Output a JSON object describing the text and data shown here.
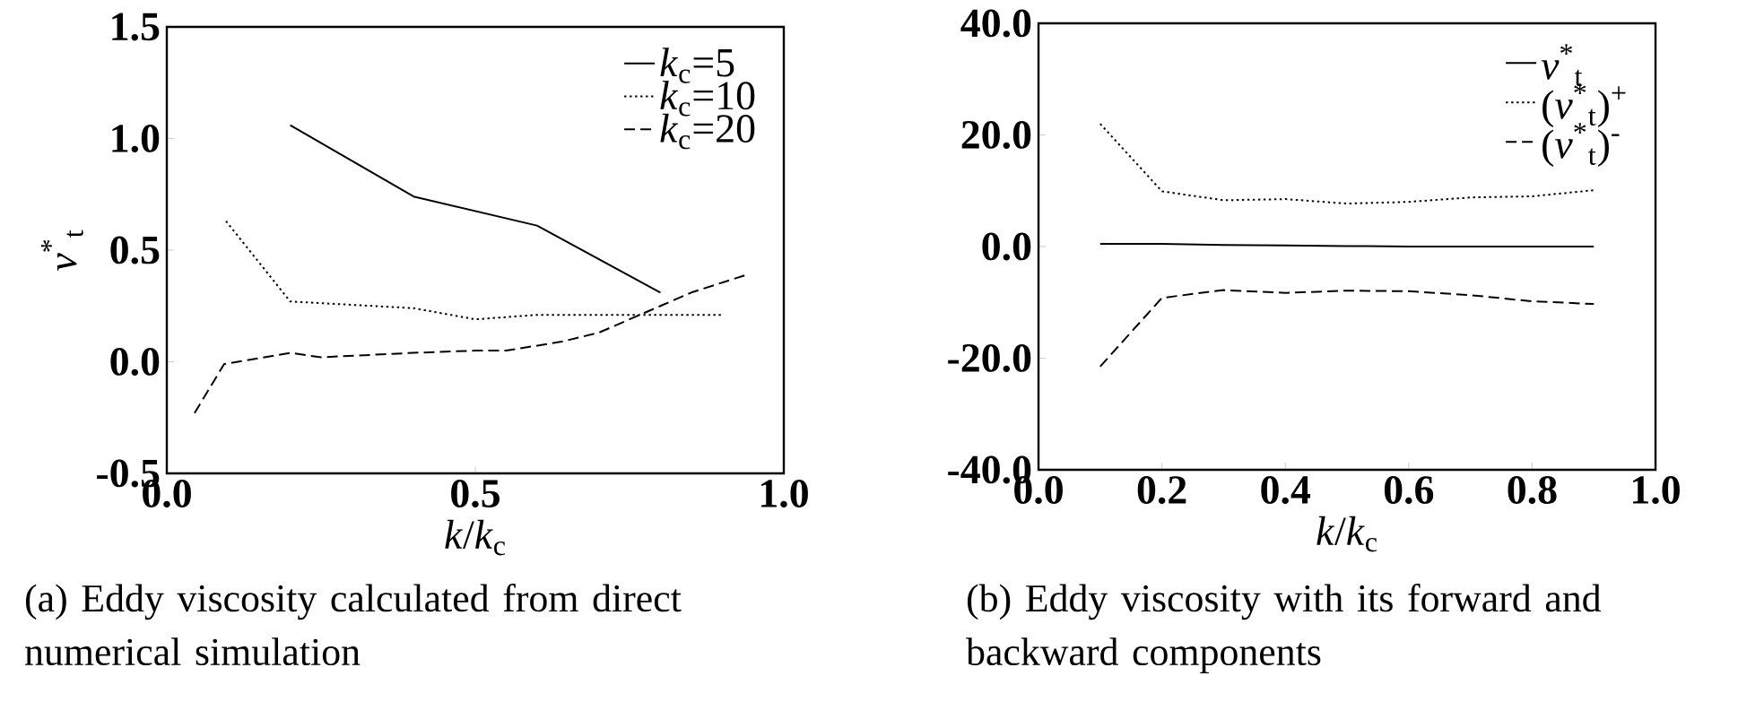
{
  "chart_data": [
    {
      "type": "line",
      "xlabel": "*k*/*k*$_{c}$",
      "ylabel": "*ν*$^{*}$$_{t}$",
      "xlim": [
        0,
        1
      ],
      "ylim": [
        -0.5,
        1.5
      ],
      "xticks": [
        {
          "value": 0,
          "label": "0.0"
        },
        {
          "value": 0.5,
          "label": "0.5"
        },
        {
          "value": 1,
          "label": "1.0"
        }
      ],
      "yticks": [
        {
          "value": -0.5,
          "label": "-0.5"
        },
        {
          "value": 0,
          "label": "0.0"
        },
        {
          "value": 0.5,
          "label": "0.5"
        },
        {
          "value": 1,
          "label": "1.0"
        },
        {
          "value": 1.5,
          "label": "1.5"
        }
      ],
      "grid": false,
      "legend": "top right",
      "series": [
        {
          "name": "*k*$_{c}$=5",
          "color": "#000000",
          "line_style": "solid",
          "x": [
            0.2,
            0.4,
            0.6,
            0.8
          ],
          "values": [
            1.06,
            0.74,
            0.61,
            0.31
          ]
        },
        {
          "name": "*k*$_{c}$=10",
          "color": "#000000",
          "line_style": "dotted",
          "x": [
            0.096,
            0.2,
            0.4,
            0.5,
            0.6,
            0.9
          ],
          "values": [
            0.63,
            0.27,
            0.24,
            0.19,
            0.21,
            0.21
          ]
        },
        {
          "name": "*k*$_{c}$=20",
          "color": "#000000",
          "line_style": "dashed",
          "x": [
            0.045,
            0.093,
            0.2,
            0.25,
            0.4,
            0.5,
            0.55,
            0.64,
            0.7,
            0.8,
            0.85,
            0.94
          ],
          "values": [
            -0.23,
            -0.01,
            0.04,
            0.02,
            0.04,
            0.05,
            0.05,
            0.09,
            0.13,
            0.25,
            0.31,
            0.39
          ]
        }
      ],
      "annotations": [
        "(a) Eddy viscosity calculated from direct numerical simulation"
      ]
    },
    {
      "type": "line",
      "xlabel": "*k*/*k*$_{c}$",
      "xlim": [
        0,
        1
      ],
      "ylim": [
        -40,
        40
      ],
      "xticks": [
        {
          "value": 0,
          "label": "0.0"
        },
        {
          "value": 0.2,
          "label": "0.2"
        },
        {
          "value": 0.4,
          "label": "0.4"
        },
        {
          "value": 0.6,
          "label": "0.6"
        },
        {
          "value": 0.8,
          "label": "0.8"
        },
        {
          "value": 1,
          "label": "1.0"
        }
      ],
      "yticks": [
        {
          "value": -40,
          "label": "-40.0"
        },
        {
          "value": -20,
          "label": "-20.0"
        },
        {
          "value": 0,
          "label": "0.0"
        },
        {
          "value": 20,
          "label": "20.0"
        },
        {
          "value": 40,
          "label": "40.0"
        }
      ],
      "grid": false,
      "legend": "top right",
      "x": [
        0.1,
        0.2,
        0.3,
        0.4,
        0.5,
        0.6,
        0.7,
        0.8,
        0.9
      ],
      "series": [
        {
          "name": "*ν*$^{*}$$_{t}$",
          "color": "#000000",
          "line_style": "solid",
          "values": [
            0.5,
            0.5,
            0.3,
            0.2,
            0.1,
            0.0,
            0.0,
            0.0,
            0.0
          ]
        },
        {
          "name": "(*ν*$^{*}$$_{t}$)$^{+}$",
          "color": "#000000",
          "line_style": "dotted",
          "values": [
            22.0,
            9.9,
            8.3,
            8.5,
            7.7,
            8.0,
            8.8,
            9.0,
            10.1
          ]
        },
        {
          "name": "(*ν*$^{*}$$_{t}$)$^{-}$",
          "color": "#000000",
          "line_style": "dashed",
          "values": [
            -21.5,
            -9.2,
            -7.8,
            -8.3,
            -7.9,
            -8.0,
            -8.7,
            -9.8,
            -10.3
          ]
        }
      ],
      "annotations": [
        "(b) Eddy viscosity with its forward and backward components"
      ]
    }
  ]
}
